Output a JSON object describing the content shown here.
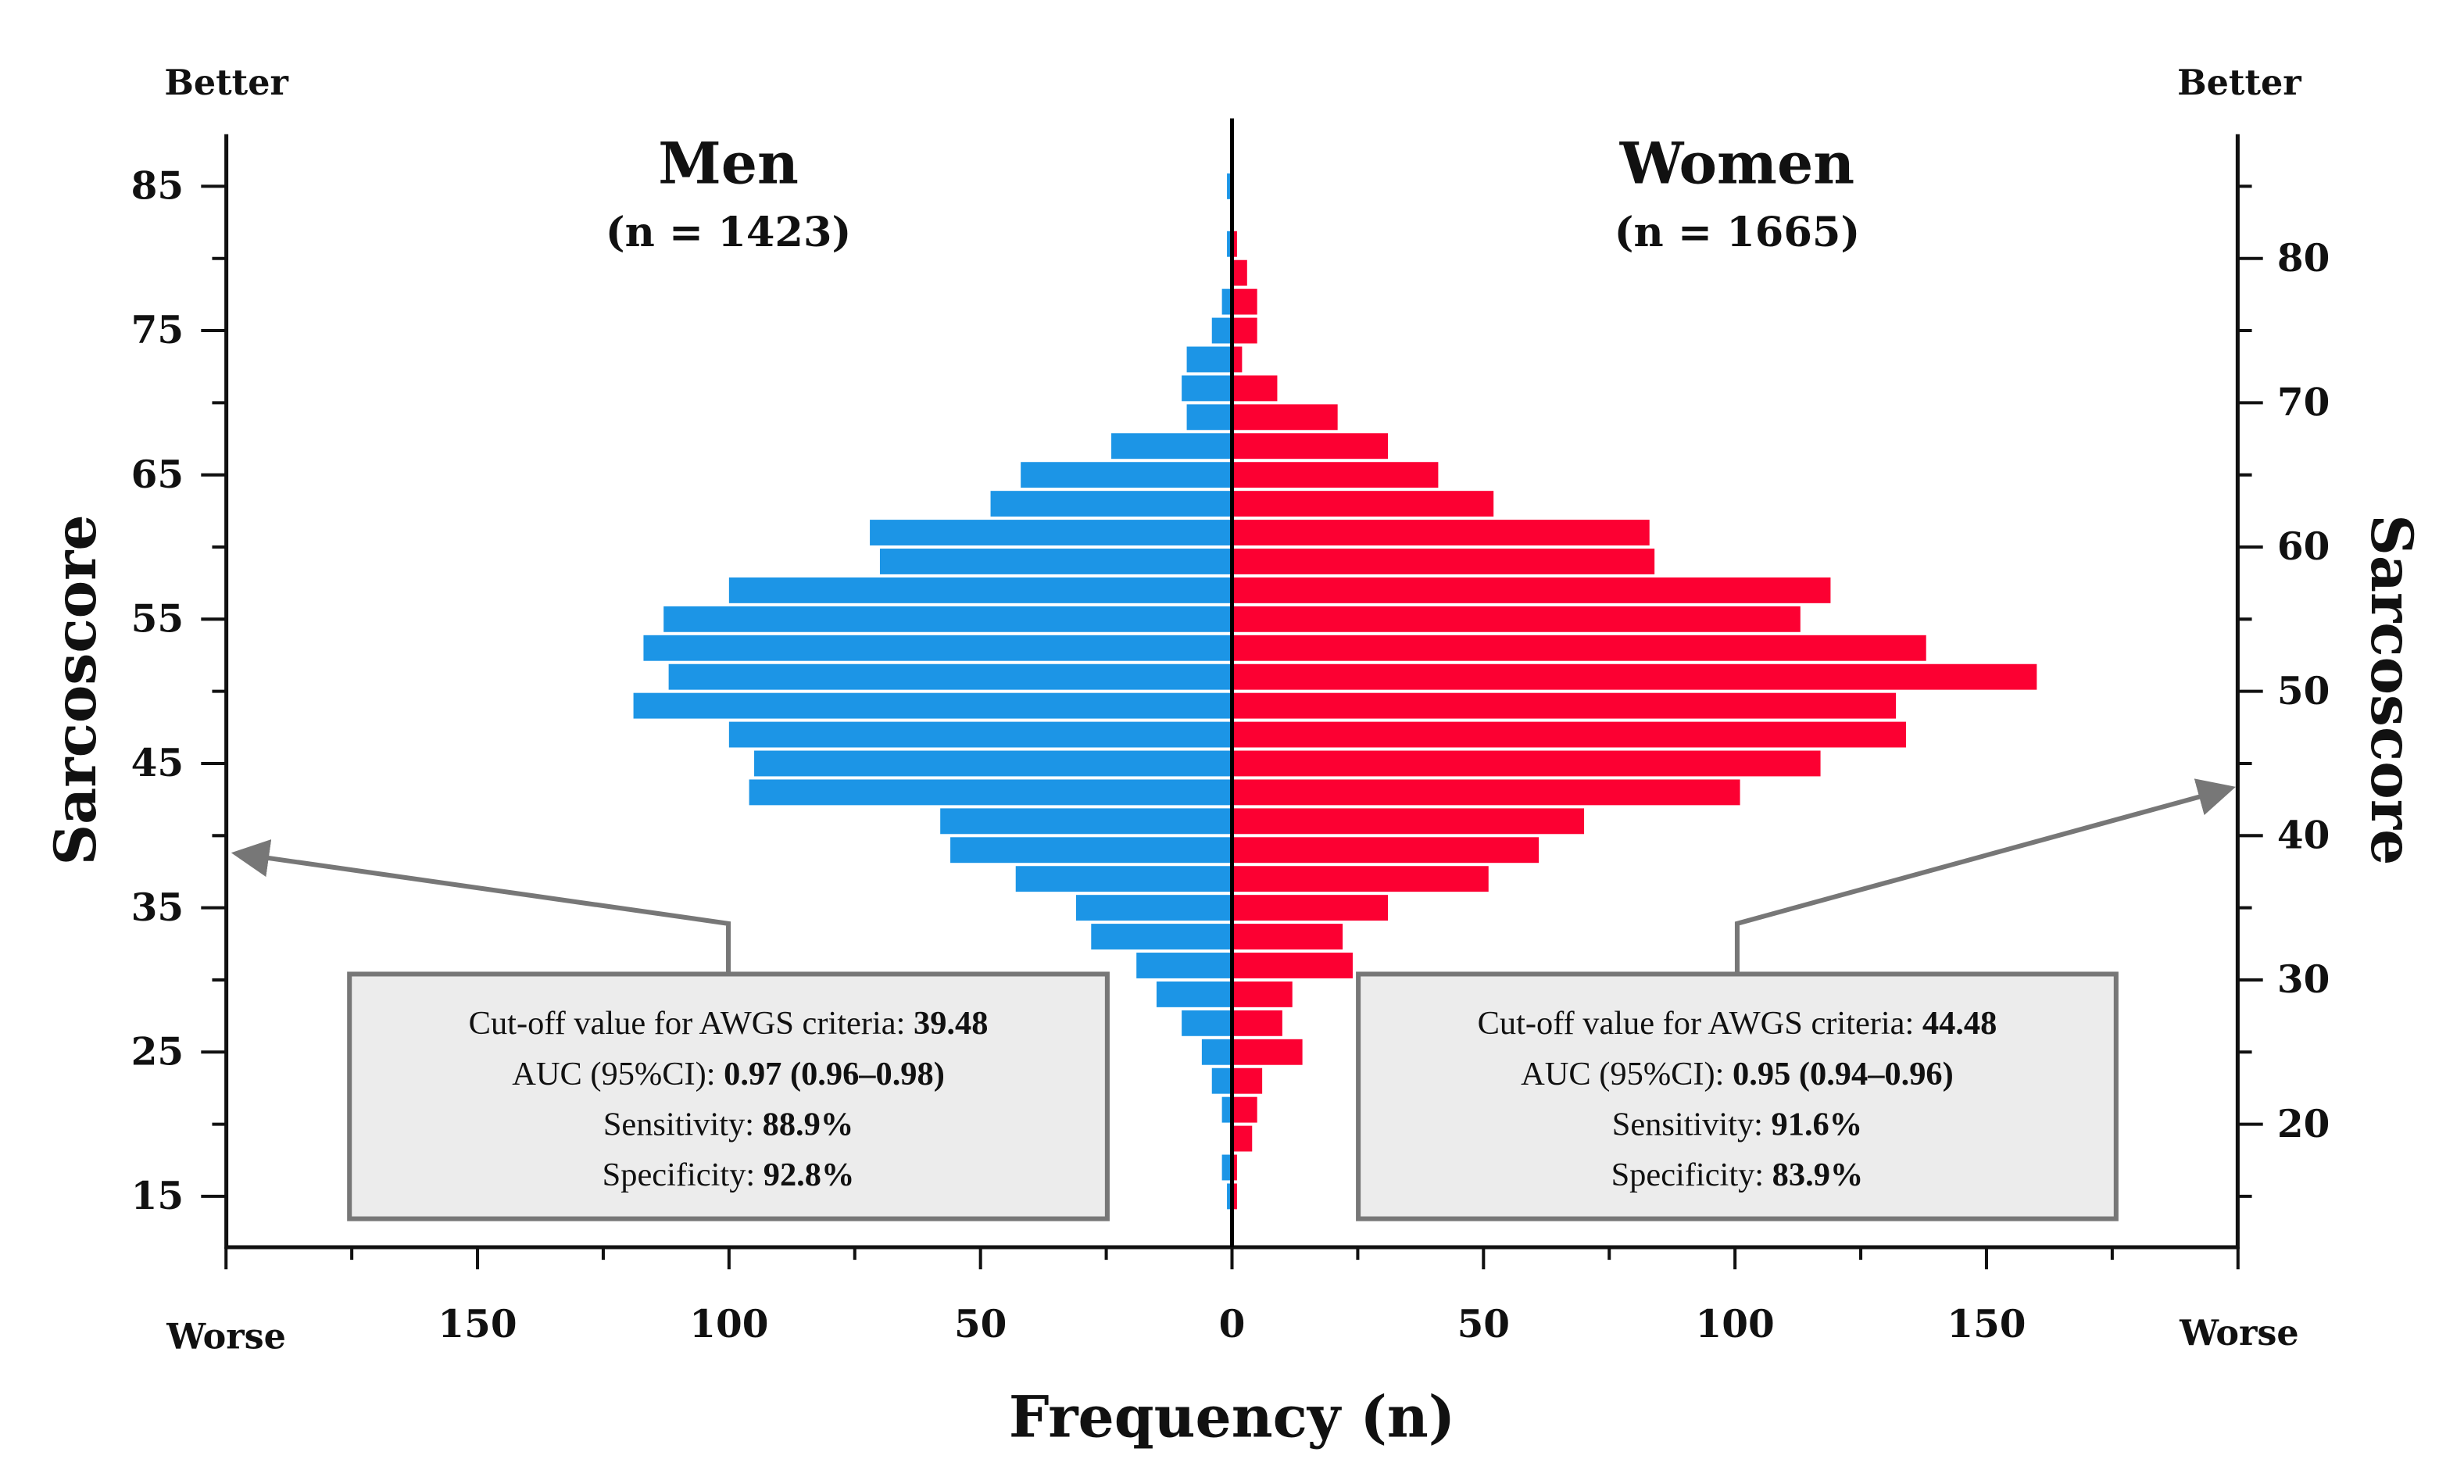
{
  "chart_data": {
    "type": "bar",
    "orientation": "horizontal-population-pyramid",
    "bin_width": 2,
    "categories": [
      85,
      83,
      81,
      79,
      77,
      75,
      73,
      71,
      69,
      67,
      65,
      63,
      61,
      59,
      57,
      55,
      53,
      51,
      49,
      47,
      45,
      43,
      41,
      39,
      37,
      35,
      33,
      31,
      29,
      27,
      25,
      23,
      21,
      19,
      17,
      15
    ],
    "series": [
      {
        "name": "Men",
        "n_label": "(n = 1423)",
        "color": "#1c95e6",
        "side": "left",
        "values": [
          1,
          0,
          1,
          0,
          2,
          4,
          9,
          10,
          9,
          24,
          42,
          48,
          72,
          70,
          100,
          113,
          117,
          112,
          119,
          100,
          95,
          96,
          58,
          56,
          43,
          31,
          28,
          19,
          15,
          10,
          6,
          4,
          2,
          0,
          2,
          1
        ]
      },
      {
        "name": "Women",
        "n_label": "(n = 1665)",
        "color": "#fc0032",
        "side": "right",
        "values": [
          0,
          0,
          1,
          3,
          5,
          5,
          2,
          9,
          21,
          31,
          41,
          52,
          83,
          84,
          119,
          113,
          138,
          160,
          132,
          134,
          117,
          101,
          70,
          61,
          51,
          31,
          22,
          24,
          12,
          10,
          14,
          6,
          5,
          4,
          1,
          1
        ]
      }
    ],
    "xlabel": "Frequency (n)",
    "ylabel_left": "Sarcoscore",
    "ylabel_right": "Sarcoscore",
    "xlim": [
      -200,
      200
    ],
    "ylim": [
      11.5,
      88.5
    ],
    "x_tick_labels": [
      {
        "value": -150,
        "label": "150"
      },
      {
        "value": -100,
        "label": "100"
      },
      {
        "value": -50,
        "label": "50"
      },
      {
        "value": 0,
        "label": "0"
      },
      {
        "value": 50,
        "label": "50"
      },
      {
        "value": 100,
        "label": "100"
      },
      {
        "value": 150,
        "label": "150"
      }
    ],
    "y_left_ticks": [
      "85",
      "75",
      "65",
      "55",
      "45",
      "35",
      "25",
      "15"
    ],
    "y_right_ticks": [
      "80",
      "70",
      "60",
      "50",
      "40",
      "30",
      "20"
    ],
    "corner_labels": {
      "better_left": "Better",
      "better_right": "Better",
      "worse_left": "Worse",
      "worse_right": "Worse"
    },
    "annotations": [
      {
        "group": "Men",
        "cutoff_label": "Cut-off value for AWGS criteria: ",
        "cutoff": "39.48",
        "auc_label": "AUC (95%CI): ",
        "auc": "0.97 (0.96–0.98)",
        "sens_label": "Sensitivity: ",
        "sens": "88.9%",
        "spec_label": "Specificity: ",
        "spec": "92.8%"
      },
      {
        "group": "Women",
        "cutoff_label": "Cut-off value for AWGS criteria: ",
        "cutoff": "44.48",
        "auc_label": "AUC (95%CI): ",
        "auc": "0.95 (0.94–0.96)",
        "sens_label": "Sensitivity: ",
        "sens": "91.6%",
        "spec_label": "Specificity: ",
        "spec": "83.9%"
      }
    ]
  }
}
